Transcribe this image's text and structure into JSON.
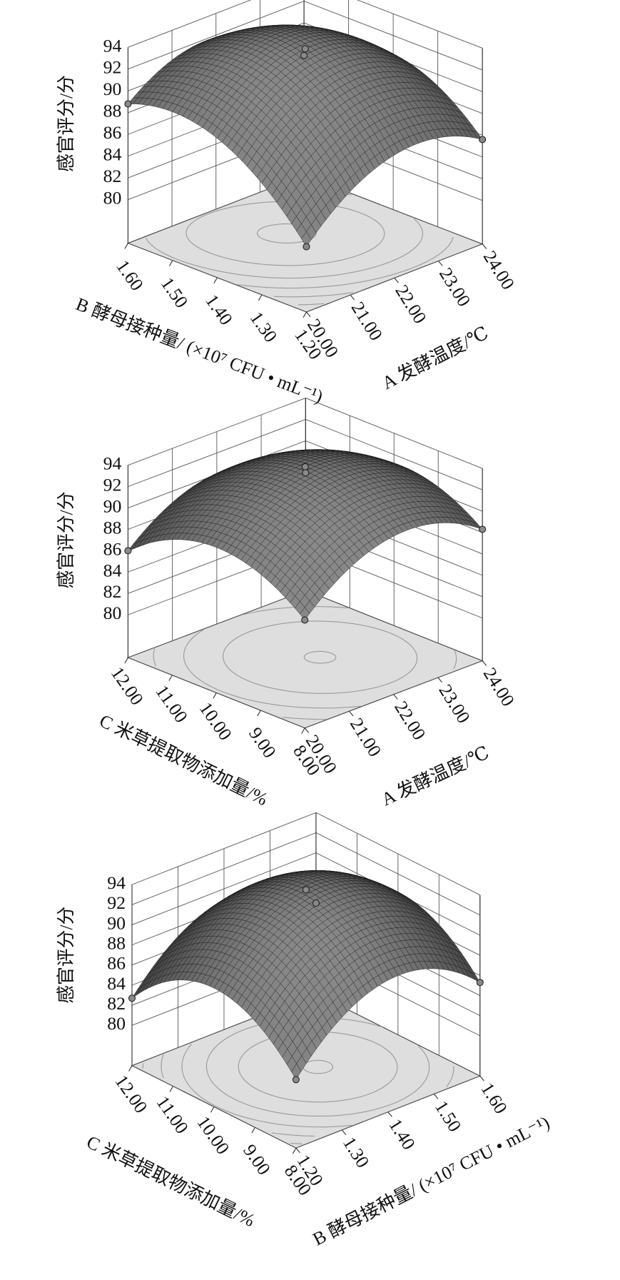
{
  "chart_data": [
    {
      "type": "surface",
      "z_label": "感官评分/分",
      "x_label": "A 发酵温度/℃",
      "y_label": "B 酵母接种量/ (×10⁷ CFU • mL⁻¹)",
      "x": [
        20,
        22,
        24
      ],
      "y": [
        1.2,
        1.4,
        1.6
      ],
      "z": [
        [
          82,
          88.8,
          88.8
        ],
        [
          87.3,
          93.9,
          91.8
        ],
        [
          85.6,
          90.3,
          87
        ]
      ],
      "xlim": [
        20,
        24
      ],
      "ylim": [
        1.2,
        1.6
      ],
      "zlim": [
        76,
        94
      ],
      "xticks": [
        {
          "value": 20,
          "label": "20.00"
        },
        {
          "value": 21,
          "label": "21.00"
        },
        {
          "value": 22,
          "label": "22.00"
        },
        {
          "value": 23,
          "label": "23.00"
        },
        {
          "value": 24,
          "label": "24.00"
        }
      ],
      "yticks": [
        {
          "value": 1.2,
          "label": "1.20"
        },
        {
          "value": 1.3,
          "label": "1.30"
        },
        {
          "value": 1.4,
          "label": "1.40"
        },
        {
          "value": 1.5,
          "label": "1.50"
        },
        {
          "value": 1.6,
          "label": "1.60"
        }
      ],
      "zticks": [
        80,
        82,
        84,
        86,
        88,
        90,
        92,
        94
      ],
      "color": "#4d4d4d"
    },
    {
      "type": "surface",
      "z_label": "感官评分/分",
      "x_label": "A 发酵温度/℃",
      "y_label": "C 米草提取物添加量/%",
      "x": [
        20,
        22,
        24
      ],
      "y": [
        8,
        10,
        12
      ],
      "z": [
        [
          86.1,
          89.6,
          86.0
        ],
        [
          90.8,
          94.0,
          90.1
        ],
        [
          88.3,
          91.2,
          87.0
        ]
      ],
      "xlim": [
        20,
        24
      ],
      "ylim": [
        8,
        12
      ],
      "zlim": [
        76,
        94
      ],
      "xticks": [
        {
          "value": 20,
          "label": "20.00"
        },
        {
          "value": 21,
          "label": "21.00"
        },
        {
          "value": 22,
          "label": "22.00"
        },
        {
          "value": 23,
          "label": "23.00"
        },
        {
          "value": 24,
          "label": "24.00"
        }
      ],
      "yticks": [
        {
          "value": 8,
          "label": "8.00"
        },
        {
          "value": 9,
          "label": "9.00"
        },
        {
          "value": 10,
          "label": "10.00"
        },
        {
          "value": 11,
          "label": "11.00"
        },
        {
          "value": 12,
          "label": "12.00"
        }
      ],
      "zticks": [
        80,
        82,
        84,
        86,
        88,
        90,
        92,
        94
      ],
      "color": "#4d4d4d"
    },
    {
      "type": "surface",
      "z_label": "感官评分/分",
      "x_label": "B 酵母接种量/ (×10⁷ CFU • mL⁻¹)",
      "y_label": "C 米草提取物添加量/%",
      "x": [
        1.2,
        1.4,
        1.6
      ],
      "y": [
        8,
        10,
        12
      ],
      "z": [
        [
          82.8,
          87.8,
          82.7
        ],
        [
          89.1,
          94.0,
          88.9
        ],
        [
          85.3,
          90.2,
          85.0
        ]
      ],
      "xlim": [
        1.2,
        1.6
      ],
      "ylim": [
        8,
        12
      ],
      "zlim": [
        76,
        94
      ],
      "xticks": [
        {
          "value": 1.2,
          "label": "1.20"
        },
        {
          "value": 1.3,
          "label": "1.30"
        },
        {
          "value": 1.4,
          "label": "1.40"
        },
        {
          "value": 1.5,
          "label": "1.50"
        },
        {
          "value": 1.6,
          "label": "1.60"
        }
      ],
      "yticks": [
        {
          "value": 8,
          "label": "8.00"
        },
        {
          "value": 9,
          "label": "9.00"
        },
        {
          "value": 10,
          "label": "10.00"
        },
        {
          "value": 11,
          "label": "11.00"
        },
        {
          "value": 12,
          "label": "12.00"
        }
      ],
      "zticks": [
        80,
        82,
        84,
        86,
        88,
        90,
        92,
        94
      ],
      "color": "#4d4d4d"
    }
  ]
}
